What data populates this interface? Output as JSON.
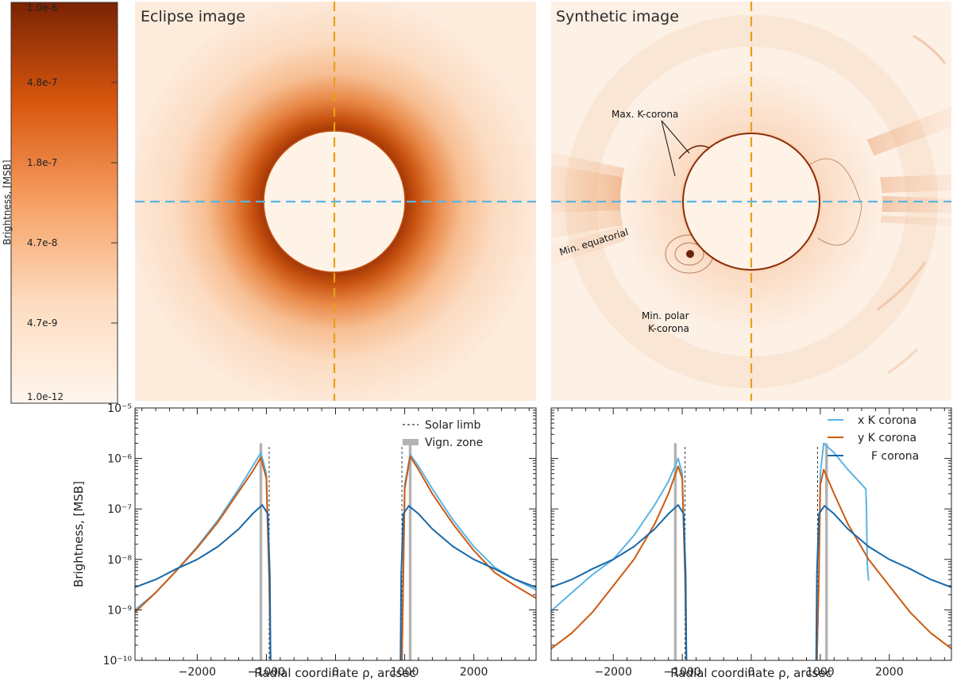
{
  "colorbar": {
    "label": "Brightness, [MSB]",
    "ticks": [
      "1.0e-6",
      "4.8e-7",
      "1.8e-7",
      "4.7e-8",
      "4.7e-9",
      "1.0e-12"
    ],
    "color_dark": "#7a2304",
    "color_light": "#fff5ec"
  },
  "images": [
    {
      "title": "Eclipse image"
    },
    {
      "title": "Synthetic image",
      "annotations": [
        "Max. K-corona",
        "Min. equatorial",
        "Min. polar",
        "K-corona"
      ]
    }
  ],
  "colors": {
    "x_k_corona": "#5ab4e5",
    "y_k_corona": "#cc5a12",
    "f_corona": "#1868a8",
    "vignetting": "#b3b3b3",
    "limb": "#333333",
    "cross_vertical": "#e8a017",
    "cross_horizontal": "#5ab4e5"
  },
  "chart_data": [
    {
      "type": "line",
      "title": "",
      "xlabel": "Radial coordinate ρ, arcsec",
      "ylabel": "Brightness, [MSB]",
      "xlim": [
        -2900,
        2900
      ],
      "ylim": [
        1e-10,
        1e-05
      ],
      "yscale": "log",
      "x_ticks": [
        "−2000",
        "−1000",
        "0",
        "1000",
        "2000"
      ],
      "y_ticks": [
        "10⁻¹⁰",
        "10⁻⁹",
        "10⁻⁸",
        "10⁻⁷",
        "10⁻⁶",
        "10⁻⁵"
      ],
      "legend": {
        "position": "top-right",
        "entries": [
          "Solar limb",
          "Vign. zone"
        ]
      },
      "limb_x": [
        -960,
        960
      ],
      "vignetting_zones": [
        [
          -1100,
          -1060
        ],
        [
          1060,
          1100
        ]
      ],
      "series": [
        {
          "name": "x K corona",
          "color_key": "x_k_corona",
          "left": {
            "x": [
              -2900,
              -2600,
              -2300,
              -2000,
              -1700,
              -1400,
              -1200,
              -1080,
              -1000,
              -960,
              -940
            ],
            "y": [
              1e-09,
              2.2e-09,
              6e-09,
              1.8e-08,
              6e-08,
              2.5e-07,
              7e-07,
              1.3e-06,
              5e-07,
              5e-09,
              1e-10
            ]
          },
          "right": {
            "x": [
              960,
              980,
              1000,
              1080,
              1200,
              1400,
              1700,
              2000,
              2300,
              2600,
              2900
            ],
            "y": [
              1e-10,
              5e-09,
              3e-07,
              1.2e-06,
              7e-07,
              2.5e-07,
              6e-08,
              1.8e-08,
              7e-09,
              4e-09,
              2.5e-09
            ]
          }
        },
        {
          "name": "y K corona",
          "color_key": "y_k_corona",
          "left": {
            "x": [
              -2900,
              -2600,
              -2300,
              -2000,
              -1700,
              -1400,
              -1200,
              -1080,
              -1000,
              -960,
              -940
            ],
            "y": [
              9e-10,
              2.2e-09,
              6e-09,
              1.7e-08,
              5.5e-08,
              2.2e-07,
              5.5e-07,
              1.05e-06,
              4e-07,
              4e-09,
              1e-10
            ]
          },
          "right": {
            "x": [
              960,
              980,
              1000,
              1080,
              1200,
              1400,
              1700,
              2000,
              2300,
              2600,
              2900
            ],
            "y": [
              1e-10,
              4e-09,
              2.5e-07,
              1.1e-06,
              6e-07,
              2e-07,
              5e-08,
              1.5e-08,
              5.5e-09,
              3e-09,
              1.7e-09
            ]
          }
        },
        {
          "name": "F corona",
          "color_key": "f_corona",
          "left": {
            "x": [
              -2900,
              -2600,
              -2300,
              -2000,
              -1700,
              -1400,
              -1200,
              -1060,
              -980,
              -950,
              -940
            ],
            "y": [
              2.8e-09,
              4e-09,
              6.5e-09,
              1e-08,
              1.8e-08,
              4e-08,
              8e-08,
              1.2e-07,
              8e-08,
              5e-09,
              1e-10
            ]
          },
          "right": {
            "x": [
              940,
              950,
              980,
              1060,
              1200,
              1400,
              1700,
              2000,
              2300,
              2600,
              2900
            ],
            "y": [
              1e-10,
              5e-09,
              8e-08,
              1.15e-07,
              8e-08,
              4e-08,
              1.8e-08,
              1e-08,
              6.5e-09,
              4e-09,
              2.8e-09
            ]
          }
        }
      ]
    },
    {
      "type": "line",
      "title": "",
      "xlabel": "Radial coordinate ρ, arcsec",
      "ylabel": "",
      "xlim": [
        -2900,
        2900
      ],
      "ylim": [
        1e-10,
        1e-05
      ],
      "yscale": "log",
      "x_ticks": [
        "−2000",
        "−1000",
        "0",
        "1000",
        "2000"
      ],
      "legend": {
        "position": "top-right",
        "entries": [
          "x K corona",
          "y K corona",
          "F corona"
        ]
      },
      "limb_x": [
        -960,
        960
      ],
      "vignetting_zones": [
        [
          -1120,
          -1080
        ],
        [
          1070,
          1110
        ]
      ],
      "series": [
        {
          "name": "x K corona",
          "color_key": "x_k_corona",
          "left": {
            "x": [
              -2900,
              -2600,
              -2300,
              -2000,
              -1700,
              -1400,
              -1200,
              -1060,
              -1000,
              -960,
              -940
            ],
            "y": [
              9.5e-10,
              2.2e-09,
              5e-09,
              1e-08,
              3e-08,
              1.2e-07,
              3.5e-07,
              1e-06,
              5e-07,
              5e-09,
              1e-10
            ]
          },
          "right": {
            "x": [
              950,
              980,
              1000,
              1050,
              1200,
              1400,
              1660,
              1670,
              1680,
              1700
            ],
            "y": [
              1e-10,
              5e-09,
              5e-07,
              2e-06,
              1.3e-06,
              6e-07,
              2.5e-07,
              1e-07,
              8e-09,
              3.8e-09
            ]
          }
        },
        {
          "name": "y K corona",
          "color_key": "y_k_corona",
          "left": {
            "x": [
              -2900,
              -2600,
              -2300,
              -2000,
              -1700,
              -1400,
              -1200,
              -1060,
              -1000,
              -960,
              -940
            ],
            "y": [
              1.7e-10,
              3.5e-10,
              9e-10,
              3e-09,
              1e-08,
              5e-08,
              2e-07,
              7e-07,
              4e-07,
              5e-09,
              1e-10
            ]
          },
          "right": {
            "x": [
              950,
              980,
              1000,
              1050,
              1200,
              1400,
              1700,
              2000,
              2300,
              2600,
              2900
            ],
            "y": [
              1e-10,
              5e-09,
              3e-07,
              6e-07,
              2e-07,
              5e-08,
              1e-08,
              3e-09,
              9e-10,
              3.5e-10,
              1.7e-10
            ]
          }
        },
        {
          "name": "F corona",
          "color_key": "f_corona",
          "left": {
            "x": [
              -2900,
              -2600,
              -2300,
              -2000,
              -1700,
              -1400,
              -1200,
              -1060,
              -980,
              -950,
              -940
            ],
            "y": [
              2.8e-09,
              4e-09,
              6.5e-09,
              1e-08,
              1.8e-08,
              4e-08,
              8e-08,
              1.2e-07,
              8e-08,
              5e-09,
              1e-10
            ]
          },
          "right": {
            "x": [
              940,
              950,
              980,
              1060,
              1200,
              1400,
              1700,
              2000,
              2300,
              2600,
              2900
            ],
            "y": [
              1e-10,
              5e-09,
              8e-08,
              1.15e-07,
              8e-08,
              4e-08,
              1.8e-08,
              1e-08,
              6.5e-09,
              4e-09,
              2.8e-09
            ]
          }
        }
      ]
    }
  ]
}
